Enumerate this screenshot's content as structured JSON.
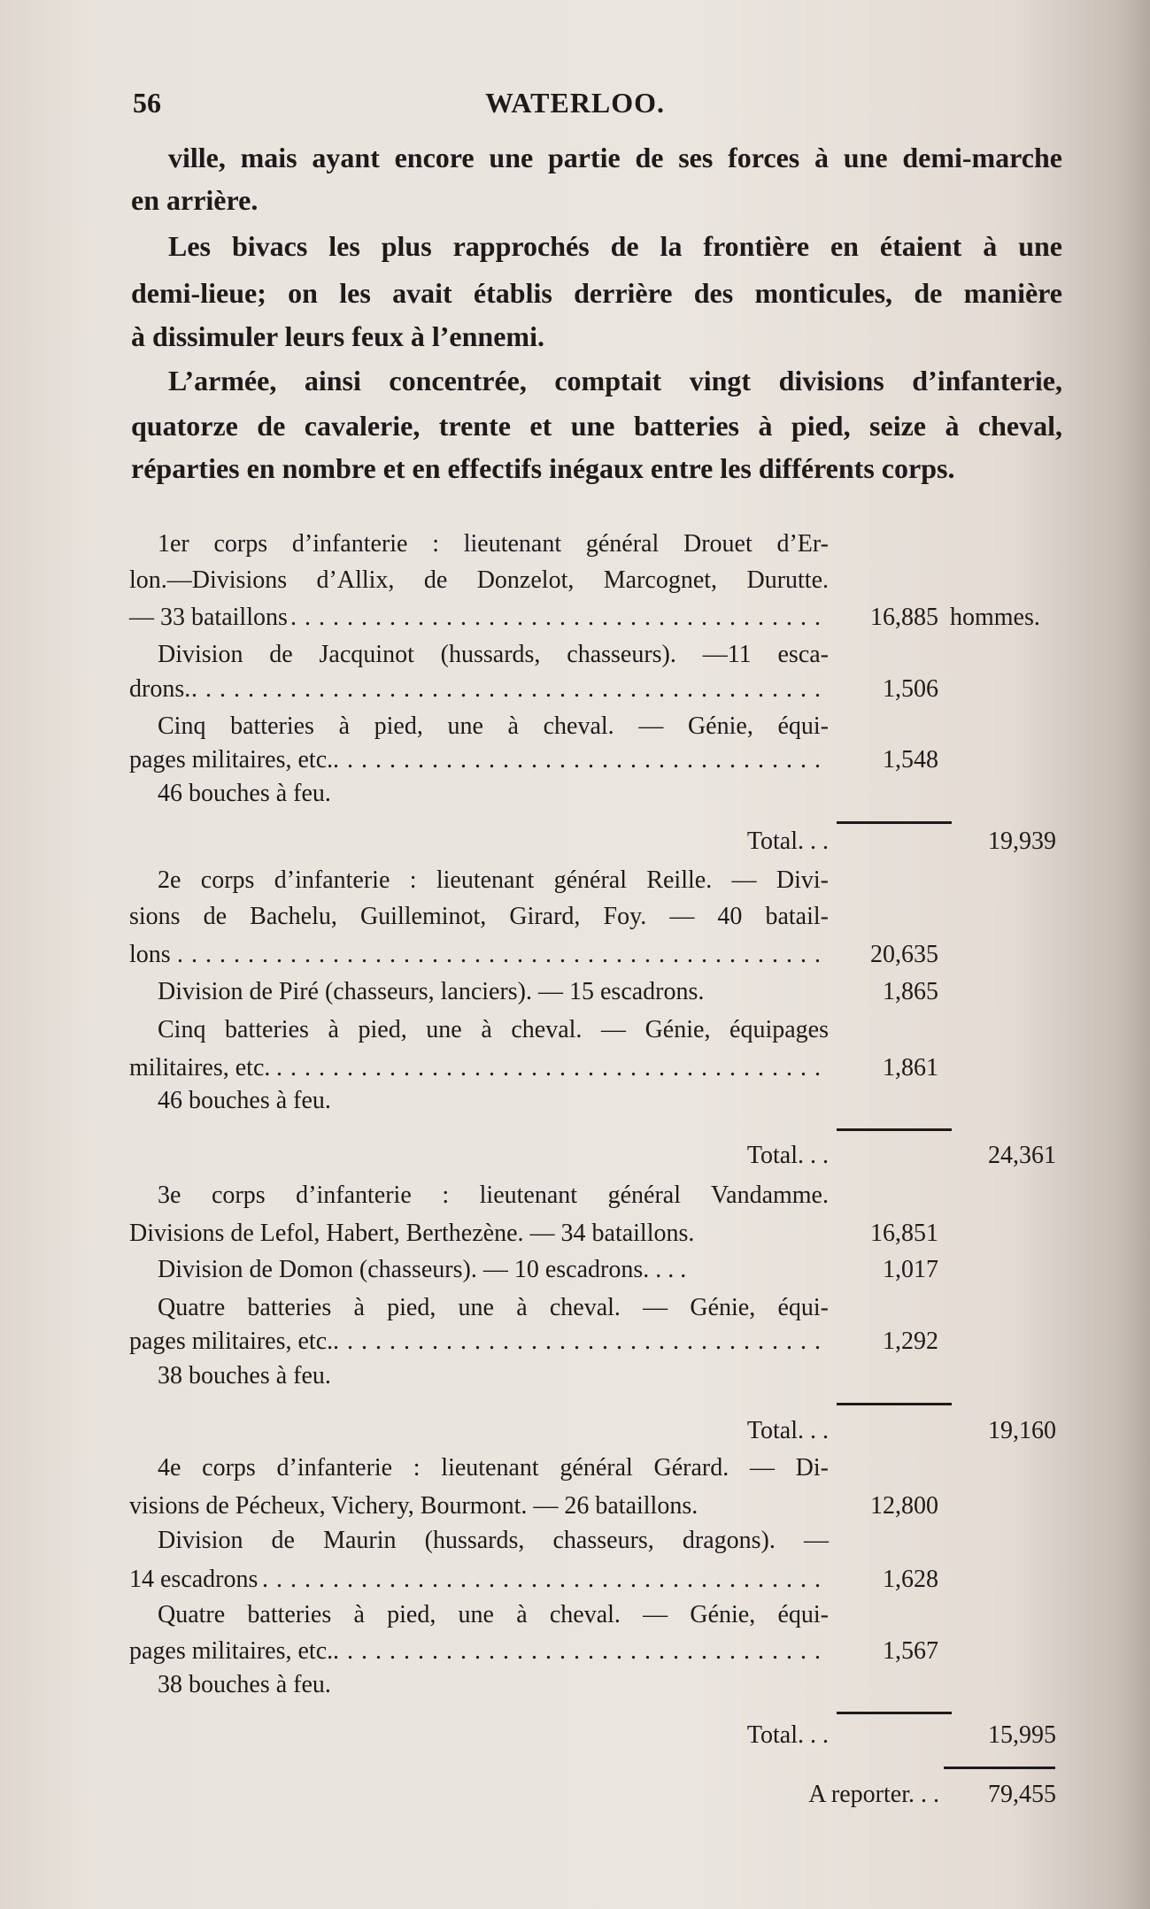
{
  "header": {
    "page_number": "56",
    "running_head": "WATERLOO."
  },
  "paragraphs": [
    {
      "lines": [
        "ville, mais ayant encore une partie de ses forces à une demi-marche",
        "en arrière."
      ]
    },
    {
      "lines": [
        "Les bivacs les plus rapprochés de la frontière en étaient à une",
        "demi-lieue; on les avait établis derrière des monticules, de manière",
        "à dissimuler leurs feux à l’ennemi."
      ]
    },
    {
      "lines": [
        "L’armée, ainsi concentrée, comptait vingt divisions d’infanterie,",
        "quatorze de cavalerie, trente et une batteries à pied, seize à cheval,",
        "réparties en nombre et en effectifs inégaux entre les différents corps."
      ]
    }
  ],
  "corps": [
    {
      "lines": [
        {
          "text": "1er corps d’infanterie : lieutenant général Drouet d’Er-"
        },
        {
          "text": "lon.—Divisions d’Allix, de Donzelot, Marcognet, Durutte."
        },
        {
          "text": "— 33 bataillons",
          "value": "16,885",
          "unit": "hommes."
        },
        {
          "text": "Division de Jacquinot (hussards, chasseurs). —11 esca-"
        },
        {
          "text": "drons.",
          "value": "1,506"
        },
        {
          "text": "Cinq batteries à pied, une à cheval. — Génie, équi-"
        },
        {
          "text": "pages militaires, etc.",
          "value": "1,548"
        },
        {
          "text": "46 bouches à feu."
        }
      ],
      "total_label": "Total. . .",
      "total": "19,939"
    },
    {
      "lines": [
        {
          "text": "2e corps d’infanterie : lieutenant général Reille. — Divi-"
        },
        {
          "text": "sions de Bachelu, Guilleminot, Girard, Foy. — 40 batail-"
        },
        {
          "text": "lons",
          "value": "20,635"
        },
        {
          "text": "Division de Piré (chasseurs, lanciers). — 15 escadrons.",
          "value": "1,865"
        },
        {
          "text": "Cinq batteries à pied, une à cheval. — Génie, équipages"
        },
        {
          "text": "militaires, etc.",
          "value": "1,861"
        },
        {
          "text": "46 bouches à feu."
        }
      ],
      "total_label": "Total. . .",
      "total": "24,361"
    },
    {
      "lines": [
        {
          "text": "3e corps d’infanterie : lieutenant général Vandamme."
        },
        {
          "text": "Divisions de Lefol, Habert, Berthezène. — 34 bataillons.",
          "value": "16,851"
        },
        {
          "text": "Division de Domon (chasseurs). — 10 escadrons. . . .",
          "value": "1,017"
        },
        {
          "text": "Quatre batteries à pied, une à cheval. — Génie, équi-"
        },
        {
          "text": "pages militaires, etc.",
          "value": "1,292"
        },
        {
          "text": "38 bouches à feu."
        }
      ],
      "total_label": "Total. . .",
      "total": "19,160"
    },
    {
      "lines": [
        {
          "text": "4e corps d’infanterie : lieutenant général Gérard. — Di-"
        },
        {
          "text": "visions de Pécheux, Vichery, Bourmont. — 26 bataillons.",
          "value": "12,800"
        },
        {
          "text": "Division de Maurin (hussards, chasseurs, dragons). —"
        },
        {
          "text": "14 escadrons",
          "value": "1,628"
        },
        {
          "text": "Quatre batteries à pied, une à cheval. — Génie, équi-"
        },
        {
          "text": "pages militaires, etc.",
          "value": "1,567"
        },
        {
          "text": "38 bouches à feu."
        }
      ],
      "total_label": "Total. . .",
      "total": "15,995"
    }
  ],
  "carry_forward": {
    "label": "A reporter. . .",
    "value": "79,455"
  }
}
